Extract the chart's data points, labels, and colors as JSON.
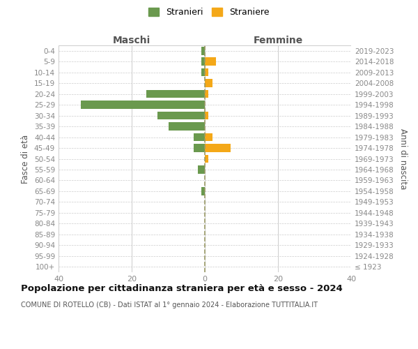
{
  "age_groups": [
    "100+",
    "95-99",
    "90-94",
    "85-89",
    "80-84",
    "75-79",
    "70-74",
    "65-69",
    "60-64",
    "55-59",
    "50-54",
    "45-49",
    "40-44",
    "35-39",
    "30-34",
    "25-29",
    "20-24",
    "15-19",
    "10-14",
    "5-9",
    "0-4"
  ],
  "birth_years": [
    "≤ 1923",
    "1924-1928",
    "1929-1933",
    "1934-1938",
    "1939-1943",
    "1944-1948",
    "1949-1953",
    "1954-1958",
    "1959-1963",
    "1964-1968",
    "1969-1973",
    "1974-1978",
    "1979-1983",
    "1984-1988",
    "1989-1993",
    "1994-1998",
    "1999-2003",
    "2004-2008",
    "2009-2013",
    "2014-2018",
    "2019-2023"
  ],
  "males_stranieri": [
    0,
    0,
    0,
    0,
    0,
    0,
    0,
    1,
    0,
    2,
    0,
    3,
    3,
    10,
    13,
    34,
    16,
    0,
    1,
    1,
    1
  ],
  "females_straniere": [
    0,
    0,
    0,
    0,
    0,
    0,
    0,
    0,
    0,
    0,
    1,
    7,
    2,
    0,
    1,
    0,
    1,
    2,
    1,
    3,
    0
  ],
  "male_color": "#6a994e",
  "female_color": "#f4a818",
  "title": "Popolazione per cittadinanza straniera per età e sesso - 2024",
  "subtitle": "COMUNE DI ROTELLO (CB) - Dati ISTAT al 1° gennaio 2024 - Elaborazione TUTTITALIA.IT",
  "xlabel_left": "Maschi",
  "xlabel_right": "Femmine",
  "ylabel_left": "Fasce di età",
  "ylabel_right": "Anni di nascita",
  "xlim": 40,
  "legend_stranieri": "Stranieri",
  "legend_straniere": "Straniere",
  "bg_color": "#ffffff",
  "grid_color": "#cccccc",
  "dashed_line_color": "#999966",
  "tick_label_color": "#888888",
  "axis_label_color": "#555555",
  "title_color": "#111111",
  "subtitle_color": "#555555",
  "title_fontsize": 9.5,
  "subtitle_fontsize": 7.0
}
